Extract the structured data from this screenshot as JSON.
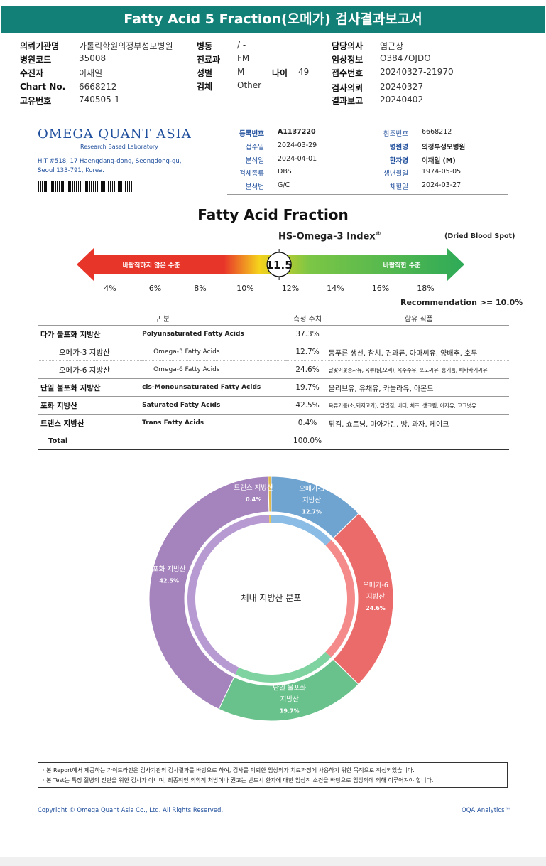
{
  "banner_title": "Fatty Acid 5 Fraction(오메가) 검사결과보고서",
  "header_fields": [
    {
      "label": "의뢰기관명",
      "value": "가톨릭학원의정부성모병원"
    },
    {
      "label": "병원코드",
      "value": "35008"
    },
    {
      "label": "수진자",
      "value": "이재일"
    },
    {
      "label": "Chart No.",
      "value": "6668212"
    },
    {
      "label": "고유번호",
      "value": "740505-1"
    },
    {
      "label": "병동",
      "value": "/ -"
    },
    {
      "label": "진료과",
      "value": "FM"
    },
    {
      "label": "성별",
      "value": "M"
    },
    {
      "label": "나이",
      "value": "49"
    },
    {
      "label": "검체",
      "value": "Other"
    },
    {
      "label": "담당의사",
      "value": "염근상"
    },
    {
      "label": "임상정보",
      "value": "O3847OJDO"
    },
    {
      "label": "접수번호",
      "value": "20240327-21970"
    },
    {
      "label": "검사의뢰",
      "value": "20240327"
    },
    {
      "label": "결과보고",
      "value": "20240402"
    }
  ],
  "lab": {
    "logo": "OMEGA QUANT ASIA",
    "tagline": "Research Based Laboratory",
    "address_line1": "HIT #518, 17 Haengdang-dong, Seongdong-gu,",
    "address_line2": "Seoul 133-791, Korea."
  },
  "report_fields": [
    {
      "label": "등록번호",
      "value": "A1137220"
    },
    {
      "label": "접수일",
      "value": "2024-03-29"
    },
    {
      "label": "분석일",
      "value": "2024-04-01"
    },
    {
      "label": "검체종류",
      "value": "DBS"
    },
    {
      "label": "분석법",
      "value": "G/C"
    },
    {
      "label": "참조번호",
      "value": "6668212"
    },
    {
      "label": "병원명",
      "value": "의정부성모병원"
    },
    {
      "label": "환자명",
      "value": "이재일 (M)"
    },
    {
      "label": "생년월일",
      "value": "1974-05-05"
    },
    {
      "label": "채혈일",
      "value": "2024-03-27"
    }
  ],
  "section_title": "Fatty Acid Fraction",
  "index": {
    "title": "HS-Omega-3 Index",
    "registered": "®",
    "specimen_note": "(Dried Blood Spot)",
    "left_label": "바람직하지 않은 수준",
    "right_label": "바람직한 수준",
    "value": 11.5,
    "value_text": "11.5",
    "scale_min": 3,
    "scale_max": 19,
    "ticks": [
      "4%",
      "6%",
      "8%",
      "10%",
      "12%",
      "14%",
      "16%",
      "18%"
    ],
    "tick_values": [
      4,
      6,
      8,
      10,
      12,
      14,
      16,
      18
    ],
    "recommendation": "Recommendation  >= 10.0%",
    "colors": {
      "bad": "#e8352a",
      "mid": "#f5d21c",
      "good": "#2eaa58"
    }
  },
  "table": {
    "headers": [
      "구 분",
      "측정 수치",
      "함유 식품"
    ],
    "rows": [
      {
        "kname": "다가 불포화 지방산",
        "ename": "Polyunsaturated Fatty Acids",
        "value": "37.3%",
        "food": "",
        "sub": false
      },
      {
        "kname": "오메가-3 지방산",
        "ename": "Omega-3 Fatty Acids",
        "value": "12.7%",
        "food": "등푸른 생선, 참치, 견과류, 아마씨유, 양배추, 호두",
        "sub": true
      },
      {
        "kname": "오메가-6 지방산",
        "ename": "Omega-6 Fatty Acids",
        "value": "24.6%",
        "food": "달맞이꽃종자유, 육류(닭,오리), 옥수수유, 포도씨유, 홍기름, 해바라기씨유",
        "sub": true,
        "small": true
      },
      {
        "kname": "단일 불포화 지방산",
        "ename": "cis-Monounsaturated Fatty Acids",
        "value": "19.7%",
        "food": "올리브유, 유채유, 카놀라유, 아몬드",
        "sub": false
      },
      {
        "kname": "포화 지방산",
        "ename": "Saturated Fatty Acids",
        "value": "42.5%",
        "food": "육류기름(소,돼지고기), 닭껍질, 버터, 치즈, 생크림, 야자유, 코코넛유",
        "sub": false,
        "small": true
      },
      {
        "kname": "트랜스 지방산",
        "ename": "Trans Fatty Acids",
        "value": "0.4%",
        "food": "튀김, 쇼트닝, 마아가린, 빵, 과자, 케이크",
        "sub": false
      }
    ],
    "total_label": "Total",
    "total_value": "100.0%"
  },
  "chart_data": {
    "type": "pie",
    "title": "",
    "center_label": "체내 지방산 분포",
    "categories": [
      "오메가-3 지방산",
      "오메가-6 지방산",
      "단일 불포화 지방산",
      "포화 지방산",
      "트랜스 지방산"
    ],
    "label_lines": [
      [
        "오메가-3",
        "지방산"
      ],
      [
        "오메가-6",
        "지방산"
      ],
      [
        "단일 불포화",
        "지방산"
      ],
      [
        "포화 지방산"
      ],
      [
        "트랜스 지방산"
      ]
    ],
    "values": [
      12.7,
      24.6,
      19.7,
      42.5,
      0.4
    ],
    "value_labels": [
      "12.7%",
      "24.6%",
      "19.7%",
      "42.5%",
      "0.4%"
    ],
    "colors": [
      "#6fa3d0",
      "#eb6b6b",
      "#69c18c",
      "#a583bd",
      "#e2b84a"
    ],
    "inner_colors": [
      "#8bbce6",
      "#f58a8a",
      "#7fd3a0",
      "#b79ad2",
      "#e9c45a"
    ]
  },
  "notes": [
    "· 본 Report에서 제공하는 가이드라인은 검사기관의 검사결과를 바탕으로 하여, 검사를 의뢰한 임상의가 치료과정에 사용하기 위한 목적으로 작성되었습니다.",
    "· 본 Test는 특정 질병의 진단을 위한 검사가 아니며, 최종적인 의학적 처방이나 권고는 반드시 환자에 대한 임상적 소견을 바탕으로 임상의에 의해 이루어져야 합니다."
  ],
  "footer_copyright": "Copyright © Omega Quant Asia Co., Ltd.  All Rights Reserved.",
  "footer_brand": "OQA Analytics™"
}
